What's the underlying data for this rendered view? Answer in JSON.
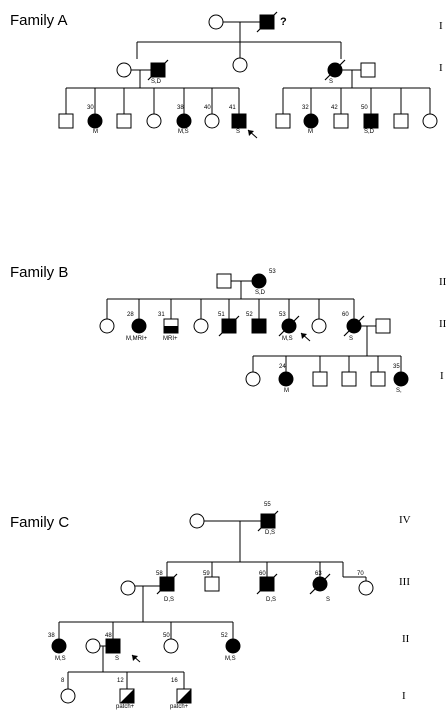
{
  "family_a": {
    "title": "Family A",
    "generations": [
      "I",
      "I"
    ],
    "unknown_mark": "?",
    "ages": [
      "30",
      "38",
      "40",
      "41",
      "32",
      "42",
      "50"
    ],
    "codes": [
      "S,D",
      "S",
      "M",
      "M,S",
      "S",
      "M",
      "S,D"
    ]
  },
  "family_b": {
    "title": "Family B",
    "generations": [
      "II",
      "II",
      "I"
    ],
    "ages": [
      "53",
      "28",
      "31",
      "51",
      "52",
      "53",
      "60",
      "24",
      "35"
    ],
    "codes": [
      "S,D",
      "M,MRI+",
      "MRI+",
      "M,S",
      "S",
      "M",
      "S,"
    ]
  },
  "family_c": {
    "title": "Family C",
    "generations": [
      "IV",
      "III",
      "II",
      "I"
    ],
    "ages": [
      "55",
      "58",
      "59",
      "60",
      "63",
      "70",
      "38",
      "48",
      "50",
      "52",
      "8",
      "12",
      "16"
    ],
    "codes": [
      "D,S",
      "D,S",
      "D,S",
      "S",
      "M,S",
      "S",
      "M,S",
      "patch+",
      "patch+"
    ]
  }
}
